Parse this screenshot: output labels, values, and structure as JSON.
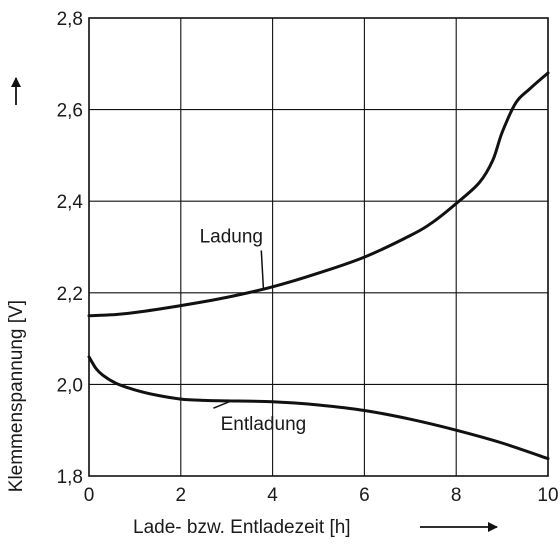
{
  "chart_data": {
    "type": "line",
    "xlabel": "Lade- bzw. Entladezeit [h]",
    "ylabel": "Klemmenspannung [V]",
    "xlim": [
      0,
      10
    ],
    "ylim": [
      1.8,
      2.8
    ],
    "xticks": [
      0,
      2,
      4,
      6,
      8,
      10
    ],
    "xtick_labels": [
      "0",
      "2",
      "4",
      "6",
      "8",
      "10"
    ],
    "yticks": [
      1.8,
      2.0,
      2.2,
      2.4,
      2.6,
      2.8
    ],
    "ytick_labels": [
      "1,8",
      "2,0",
      "2,2",
      "2,4",
      "2,6",
      "2,8"
    ],
    "grid": true,
    "series": [
      {
        "name": "Ladung",
        "x": [
          0,
          0.5,
          1,
          2,
          3,
          4,
          5,
          6,
          7,
          7.5,
          8,
          8.5,
          8.8,
          9,
          9.3,
          9.6,
          10
        ],
        "y": [
          2.15,
          2.152,
          2.157,
          2.172,
          2.19,
          2.213,
          2.243,
          2.278,
          2.325,
          2.355,
          2.395,
          2.44,
          2.49,
          2.55,
          2.615,
          2.645,
          2.68
        ]
      },
      {
        "name": "Entladung",
        "x": [
          0,
          0.15,
          0.3,
          0.6,
          1,
          1.5,
          2,
          2.5,
          3,
          4,
          5,
          6,
          7,
          8,
          9,
          10
        ],
        "y": [
          2.06,
          2.035,
          2.02,
          2.002,
          1.988,
          1.976,
          1.968,
          1.965,
          1.964,
          1.962,
          1.955,
          1.943,
          1.924,
          1.9,
          1.872,
          1.838
        ]
      }
    ],
    "annotations": [
      {
        "text": "Ladung",
        "series": 0,
        "anchor_x": 3.8,
        "label_x": 3.1,
        "label_y": 2.31
      },
      {
        "text": "Entladung",
        "series": 1,
        "anchor_x": 3.1,
        "label_x": 3.8,
        "label_y": 1.9
      }
    ]
  }
}
